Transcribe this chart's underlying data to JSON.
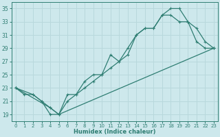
{
  "title": "",
  "xlabel": "Humidex (Indice chaleur)",
  "ylabel": "",
  "bg_color": "#cde8ec",
  "grid_color": "#b8d8dc",
  "line_color": "#2e7d72",
  "xlim": [
    -0.5,
    23.5
  ],
  "ylim": [
    18,
    36
  ],
  "xticks": [
    0,
    1,
    2,
    3,
    4,
    5,
    6,
    7,
    8,
    9,
    10,
    11,
    12,
    13,
    14,
    15,
    16,
    17,
    18,
    19,
    20,
    21,
    22,
    23
  ],
  "yticks": [
    19,
    21,
    23,
    25,
    27,
    29,
    31,
    33,
    35
  ],
  "line1_x": [
    0,
    1,
    2,
    3,
    4,
    5,
    6,
    7,
    8,
    9,
    10,
    11,
    12,
    13,
    14,
    15,
    16,
    17,
    18,
    19,
    20,
    21,
    22,
    23
  ],
  "line1_y": [
    23,
    22,
    22,
    21,
    19,
    19,
    22,
    22,
    23,
    24,
    25,
    28,
    27,
    28,
    31,
    32,
    32,
    34,
    35,
    35,
    33,
    30,
    29,
    29
  ],
  "line2_x": [
    0,
    2,
    3,
    4,
    5,
    6,
    7,
    8,
    9,
    10,
    11,
    12,
    13,
    14,
    15,
    16,
    17,
    18,
    19,
    20,
    21,
    22,
    23
  ],
  "line2_y": [
    23,
    22,
    21,
    20,
    19,
    21,
    22,
    24,
    25,
    25,
    26,
    27,
    29,
    31,
    32,
    32,
    34,
    34,
    33,
    33,
    32,
    30,
    29
  ],
  "line3_x": [
    0,
    4,
    5,
    23
  ],
  "line3_y": [
    23,
    20,
    19,
    29
  ]
}
